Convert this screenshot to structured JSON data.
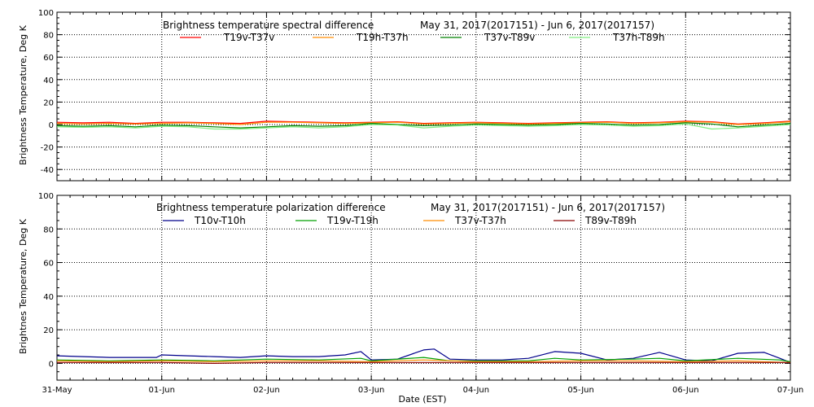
{
  "chart_data": [
    {
      "type": "line",
      "title": "Brightness temperature spectral difference",
      "date_range": "May 31, 2017(2017151) - Jun  6, 2017(2017157)",
      "ylabel": "Brightness Temperature, Deg K",
      "xlabel": "",
      "ylim": [
        -50,
        100
      ],
      "yticks": [
        -40,
        -20,
        0,
        20,
        40,
        60,
        80,
        100
      ],
      "xlim": [
        0,
        7
      ],
      "grid": true,
      "legend_position": "top",
      "series": [
        {
          "name": "T19v-T37v",
          "color": "#ff0000",
          "x": [
            0,
            0.25,
            0.5,
            0.75,
            1,
            1.25,
            1.5,
            1.75,
            2,
            2.25,
            2.5,
            2.75,
            3,
            3.25,
            3.5,
            3.75,
            4,
            4.25,
            4.5,
            4.75,
            5,
            5.25,
            5.5,
            5.75,
            6,
            6.25,
            6.5,
            6.75,
            7
          ],
          "values": [
            2,
            1.5,
            2,
            1,
            2,
            2,
            1.5,
            1,
            3,
            2.5,
            2,
            1.5,
            2,
            2.5,
            1,
            1.5,
            2,
            1.5,
            1,
            1.5,
            2,
            2.5,
            1.5,
            2,
            3,
            2.5,
            0.5,
            1.5,
            3
          ]
        },
        {
          "name": "T19h-T37h",
          "color": "#ff8c00",
          "x": [
            0,
            0.25,
            0.5,
            0.75,
            1,
            1.25,
            1.5,
            1.75,
            2,
            2.25,
            2.5,
            2.75,
            3,
            3.25,
            3.5,
            3.75,
            4,
            4.25,
            4.5,
            4.75,
            5,
            5.25,
            5.5,
            5.75,
            6,
            6.25,
            6.5,
            6.75,
            7
          ],
          "values": [
            1,
            0.5,
            1,
            0.5,
            1,
            1.5,
            1,
            0,
            2,
            2,
            1.5,
            1,
            1.5,
            2,
            0.5,
            1,
            1.5,
            1,
            0.5,
            1,
            1.5,
            2,
            1,
            1.5,
            2.5,
            2,
            0,
            1,
            2.5
          ]
        },
        {
          "name": "T37v-T89v",
          "color": "#008000",
          "x": [
            0,
            0.25,
            0.5,
            0.75,
            1,
            1.25,
            1.5,
            1.75,
            2,
            2.25,
            2.5,
            2.75,
            3,
            3.25,
            3.5,
            3.75,
            4,
            4.25,
            4.5,
            4.75,
            5,
            5.25,
            5.5,
            5.75,
            6,
            6.25,
            6.5,
            6.75,
            7
          ],
          "values": [
            -1,
            -1.5,
            -1,
            -2,
            -0.5,
            -1,
            -2,
            -3,
            -2,
            -1,
            -1.5,
            -1,
            1,
            0,
            -1,
            -0.5,
            0.5,
            0,
            -0.5,
            0,
            1,
            0.5,
            -0.5,
            0,
            1.5,
            0.5,
            -2,
            -0.5,
            1
          ]
        },
        {
          "name": "T37h-T89h",
          "color": "#80ee80",
          "x": [
            0,
            0.25,
            0.5,
            0.75,
            1,
            1.25,
            1.5,
            1.75,
            2,
            2.25,
            2.5,
            2.75,
            3,
            3.25,
            3.5,
            3.75,
            4,
            4.25,
            4.5,
            4.75,
            5,
            5.25,
            5.5,
            5.75,
            6,
            6.25,
            6.5,
            6.75,
            7
          ],
          "values": [
            -2,
            -2.5,
            -2,
            -3,
            -1.5,
            -2,
            -4,
            -4,
            -3,
            -2,
            -3,
            -2,
            0,
            -0.5,
            -3,
            -1.5,
            -0.5,
            -1,
            -1.5,
            -1,
            0,
            -0.5,
            -1.5,
            -1,
            0.5,
            -4,
            -3,
            -1.5,
            0
          ]
        }
      ]
    },
    {
      "type": "line",
      "title": "Brightness temperature polarization difference",
      "date_range": "May 31, 2017(2017151) - Jun  6, 2017(2017157)",
      "ylabel": "Brightnes Temperature, Deg K",
      "xlabel": "Date (EST)",
      "ylim": [
        -10,
        100
      ],
      "yticks": [
        0,
        20,
        40,
        60,
        80,
        100
      ],
      "xlim": [
        0,
        7
      ],
      "xticks": [
        "31-May",
        "01-Jun",
        "02-Jun",
        "03-Jun",
        "04-Jun",
        "05-Jun",
        "06-Jun",
        "07-Jun"
      ],
      "grid": true,
      "legend_position": "top",
      "series": [
        {
          "name": "T10v-T10h",
          "color": "#00008b",
          "x": [
            0,
            0.25,
            0.5,
            0.75,
            0.95,
            1,
            1.25,
            1.5,
            1.75,
            2,
            2.25,
            2.5,
            2.75,
            2.9,
            3,
            3.25,
            3.5,
            3.6,
            3.75,
            4,
            4.25,
            4.5,
            4.75,
            5,
            5.25,
            5.5,
            5.75,
            6,
            6.25,
            6.5,
            6.75,
            6.9,
            7
          ],
          "values": [
            4.5,
            4,
            3.5,
            3.5,
            3.5,
            5,
            4.5,
            4,
            3.5,
            4.5,
            4,
            4,
            5,
            7,
            2,
            2.5,
            8,
            8.5,
            2.5,
            2,
            2,
            3,
            7,
            6,
            2,
            3,
            6.5,
            2,
            1.5,
            6,
            6.5,
            3,
            0.5
          ]
        },
        {
          "name": "T19v-T19h",
          "color": "#00a000",
          "x": [
            0,
            0.5,
            1,
            1.5,
            2,
            2.5,
            2.9,
            3,
            3.5,
            3.75,
            4,
            4.5,
            4.75,
            5,
            5.5,
            5.75,
            6,
            6.5,
            6.9,
            7
          ],
          "values": [
            2,
            1.5,
            2,
            1.5,
            2.5,
            2,
            3,
            1.5,
            3.5,
            1.5,
            1.5,
            1.5,
            3,
            2,
            2.5,
            3,
            1.5,
            3,
            2,
            1
          ]
        },
        {
          "name": "T37v-T37h",
          "color": "#ff8c00",
          "x": [
            0,
            0.5,
            1,
            1.5,
            2,
            2.5,
            3,
            3.5,
            4,
            4.5,
            5,
            5.5,
            6,
            6.5,
            7
          ],
          "values": [
            1.5,
            1,
            1.5,
            1,
            1.5,
            1.5,
            1,
            2,
            1,
            1,
            1.5,
            1.5,
            1,
            1.5,
            0.5
          ]
        },
        {
          "name": "T89v-T89h",
          "color": "#8b0000",
          "x": [
            0,
            0.5,
            1,
            1.5,
            2,
            2.5,
            3,
            3.5,
            4,
            4.5,
            5,
            5.5,
            6,
            6.5,
            7
          ],
          "values": [
            0.5,
            0.5,
            0.5,
            0,
            0.5,
            0.5,
            0.5,
            0.5,
            0.5,
            0.5,
            0.5,
            0.5,
            0.5,
            0.5,
            0.5
          ]
        }
      ]
    }
  ]
}
